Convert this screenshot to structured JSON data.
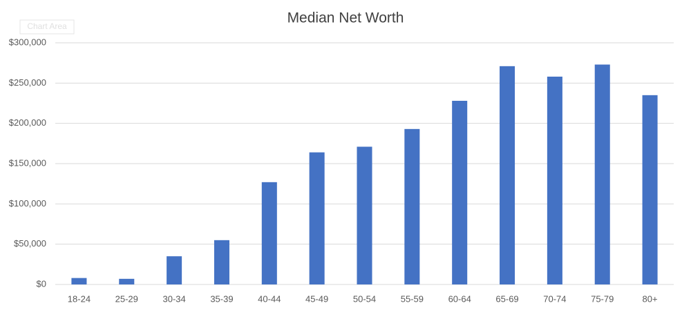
{
  "chart_data": {
    "type": "bar",
    "title": "Median Net Worth",
    "tooltip": "Chart Area",
    "categories": [
      "18-24",
      "25-29",
      "30-34",
      "35-39",
      "40-44",
      "45-49",
      "50-54",
      "55-59",
      "60-64",
      "65-69",
      "70-74",
      "75-79",
      "80+"
    ],
    "values": [
      8000,
      7000,
      35000,
      55000,
      127000,
      164000,
      171000,
      193000,
      228000,
      271000,
      258000,
      273000,
      235000
    ],
    "color": "#4472c4",
    "ylim": [
      0,
      300000
    ],
    "yticks": [
      {
        "value": 0,
        "label": "$0"
      },
      {
        "value": 50000,
        "label": "$50,000"
      },
      {
        "value": 100000,
        "label": "$100,000"
      },
      {
        "value": 150000,
        "label": "$150,000"
      },
      {
        "value": 200000,
        "label": "$200,000"
      },
      {
        "value": 250000,
        "label": "$250,000"
      },
      {
        "value": 300000,
        "label": "$300,000"
      }
    ],
    "grid": true
  }
}
